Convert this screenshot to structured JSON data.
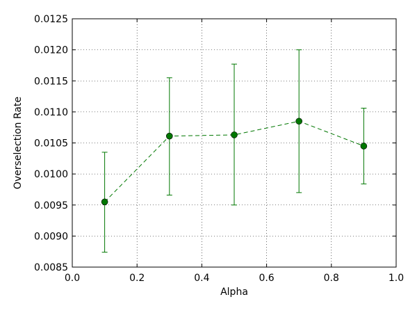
{
  "chart_data": {
    "type": "line",
    "title": "",
    "xlabel": "Alpha",
    "ylabel": "Overselection Rate",
    "xlim": [
      0.0,
      1.0
    ],
    "ylim": [
      0.0085,
      0.0125
    ],
    "grid": true,
    "xticks": [
      0.0,
      0.2,
      0.4,
      0.6,
      0.8,
      1.0
    ],
    "xtick_labels": [
      "0.0",
      "0.2",
      "0.4",
      "0.6",
      "0.8",
      "1.0"
    ],
    "yticks": [
      0.0085,
      0.009,
      0.0095,
      0.01,
      0.0105,
      0.011,
      0.0115,
      0.012,
      0.0125
    ],
    "ytick_labels": [
      "0.0085",
      "0.0090",
      "0.0095",
      "0.0100",
      "0.0105",
      "0.0110",
      "0.0115",
      "0.0120",
      "0.0125"
    ],
    "series": [
      {
        "color": "#007700",
        "line_style": "dashed",
        "marker": "circle",
        "x": [
          0.1,
          0.3,
          0.5,
          0.7,
          0.9
        ],
        "y": [
          0.00955,
          0.01061,
          0.01063,
          0.01085,
          0.01045
        ],
        "err_low": [
          0.00874,
          0.00966,
          0.0095,
          0.0097,
          0.00984
        ],
        "err_high": [
          0.01035,
          0.01155,
          0.01177,
          0.012,
          0.01106
        ]
      }
    ]
  }
}
